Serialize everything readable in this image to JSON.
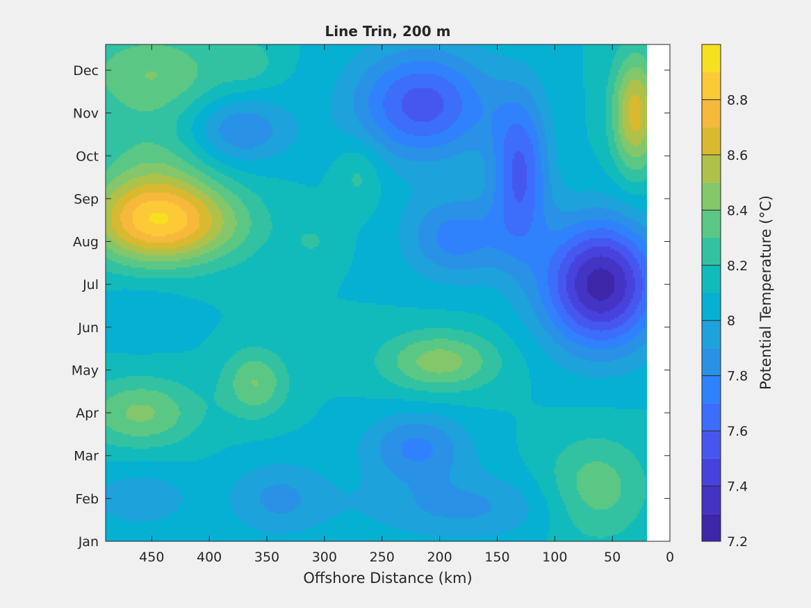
{
  "chart_data": {
    "type": "heatmap",
    "title": "Line Trin, 200 m",
    "xlabel": "Offshore Distance (km)",
    "ylabel": "",
    "x_reversed": true,
    "xlim": [
      490,
      0
    ],
    "ylim": [
      "Jan",
      "Dec"
    ],
    "x_ticks": [
      450,
      400,
      350,
      300,
      250,
      200,
      150,
      100,
      50,
      0
    ],
    "y_ticks": [
      "Jan",
      "Feb",
      "Mar",
      "Apr",
      "May",
      "Jun",
      "Jul",
      "Aug",
      "Sep",
      "Oct",
      "Nov",
      "Dec"
    ],
    "data_extent_x": [
      490,
      20
    ],
    "colorbar": {
      "label": "Potential Temperature (°C)",
      "range": [
        7.2,
        9.0
      ],
      "tick_values": [
        7.2,
        7.4,
        7.6,
        7.8,
        8.0,
        8.2,
        8.4,
        8.6,
        8.8
      ],
      "tick_labels": [
        "7.2",
        "7.4",
        "7.6",
        "7.8",
        "8",
        "8.2",
        "8.4",
        "8.6",
        "8.8"
      ],
      "levels": [
        {
          "value": 7.2,
          "color": "#3e26a8"
        },
        {
          "value": 7.3,
          "color": "#4334c4"
        },
        {
          "value": 7.4,
          "color": "#4742de"
        },
        {
          "value": 7.5,
          "color": "#4657f0"
        },
        {
          "value": 7.6,
          "color": "#3d6dfb"
        },
        {
          "value": 7.7,
          "color": "#2f82fb"
        },
        {
          "value": 7.8,
          "color": "#2992e6"
        },
        {
          "value": 7.9,
          "color": "#1ea2db"
        },
        {
          "value": 8.0,
          "color": "#06b0d3"
        },
        {
          "value": 8.1,
          "color": "#12bbbb"
        },
        {
          "value": 8.2,
          "color": "#33c2a1"
        },
        {
          "value": 8.3,
          "color": "#5ac884"
        },
        {
          "value": 8.4,
          "color": "#84c76a"
        },
        {
          "value": 8.5,
          "color": "#b0c14a"
        },
        {
          "value": 8.6,
          "color": "#d9b92f"
        },
        {
          "value": 8.7,
          "color": "#f7b93c"
        },
        {
          "value": 8.8,
          "color": "#fcca36"
        },
        {
          "value": 8.9,
          "color": "#f6e120"
        }
      ]
    },
    "base_value": 8.1,
    "features": [
      {
        "x": 450,
        "y": 7.5,
        "sx": 55,
        "sy": 1.0,
        "amp": 0.72
      },
      {
        "x": 395,
        "y": 7.4,
        "sx": 50,
        "sy": 0.9,
        "amp": 0.2
      },
      {
        "x": 445,
        "y": 8.9,
        "sx": 55,
        "sy": 1.0,
        "amp": 0.18
      },
      {
        "x": 450,
        "y": 10.9,
        "sx": 65,
        "sy": 1.1,
        "amp": 0.3
      },
      {
        "x": 365,
        "y": 11.2,
        "sx": 25,
        "sy": 0.6,
        "amp": 0.12
      },
      {
        "x": 460,
        "y": 3.0,
        "sx": 50,
        "sy": 0.8,
        "amp": 0.32
      },
      {
        "x": 360,
        "y": 3.7,
        "sx": 28,
        "sy": 0.8,
        "amp": 0.3
      },
      {
        "x": 270,
        "y": 8.6,
        "sx": 20,
        "sy": 0.8,
        "amp": 0.15
      },
      {
        "x": 310,
        "y": 7.0,
        "sx": 22,
        "sy": 0.5,
        "amp": 0.1
      },
      {
        "x": 200,
        "y": 4.2,
        "sx": 50,
        "sy": 0.7,
        "amp": 0.35
      },
      {
        "x": 65,
        "y": 1.2,
        "sx": 45,
        "sy": 1.2,
        "amp": 0.28
      },
      {
        "x": 30,
        "y": 10.0,
        "sx": 20,
        "sy": 1.4,
        "amp": 0.55
      },
      {
        "x": 215,
        "y": 10.2,
        "sx": 60,
        "sy": 1.3,
        "amp": -0.55
      },
      {
        "x": 375,
        "y": 9.6,
        "sx": 45,
        "sy": 0.8,
        "amp": -0.32
      },
      {
        "x": 130,
        "y": 8.6,
        "sx": 25,
        "sy": 1.8,
        "amp": -0.5
      },
      {
        "x": 60,
        "y": 6.0,
        "sx": 50,
        "sy": 1.5,
        "amp": -0.85
      },
      {
        "x": 185,
        "y": 7.1,
        "sx": 45,
        "sy": 1.0,
        "amp": -0.35
      },
      {
        "x": 220,
        "y": 2.2,
        "sx": 45,
        "sy": 0.8,
        "amp": -0.32
      },
      {
        "x": 340,
        "y": 1.0,
        "sx": 45,
        "sy": 0.9,
        "amp": -0.22
      },
      {
        "x": 460,
        "y": 1.0,
        "sx": 45,
        "sy": 0.7,
        "amp": -0.18
      },
      {
        "x": 180,
        "y": 0.8,
        "sx": 90,
        "sy": 0.8,
        "amp": -0.22
      },
      {
        "x": 460,
        "y": 5.3,
        "sx": 40,
        "sy": 0.7,
        "amp": -0.1
      }
    ]
  }
}
